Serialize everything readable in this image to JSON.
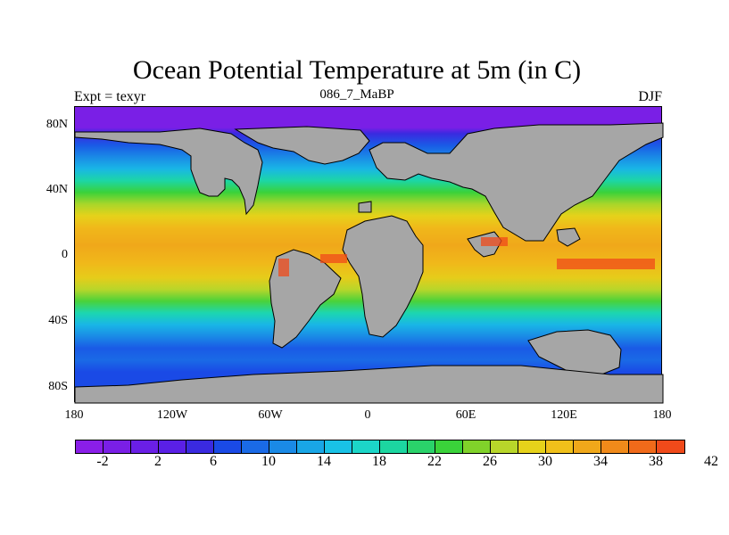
{
  "map": {
    "title": "Ocean Potential Temperature at 5m (in C)",
    "left_label": "Expt = texyr",
    "center_label": "086_7_MaBP",
    "right_label": "DJF",
    "y_ticks": [
      "80N",
      "40N",
      "0",
      "40S",
      "80S"
    ],
    "x_ticks": [
      "180",
      "120W",
      "60W",
      "0",
      "60E",
      "120E",
      "180"
    ],
    "land_color": "#a6a6a6"
  },
  "colorbar": {
    "colors": [
      "#8a1ee8",
      "#7a1fe6",
      "#6a1fe6",
      "#5a20e6",
      "#3a2ae0",
      "#1a4ae6",
      "#1a6ae6",
      "#1a8ae6",
      "#19a6e6",
      "#19c2e6",
      "#1cd6c8",
      "#1cd6a0",
      "#2ad26a",
      "#3ad23a",
      "#80d22a",
      "#b8d62a",
      "#e6d21a",
      "#f0c01a",
      "#f0a81a",
      "#f08a1a",
      "#f06a1a",
      "#f04a1a"
    ],
    "labels": [
      "-2",
      "2",
      "6",
      "10",
      "14",
      "18",
      "22",
      "26",
      "30",
      "34",
      "38",
      "42"
    ]
  }
}
